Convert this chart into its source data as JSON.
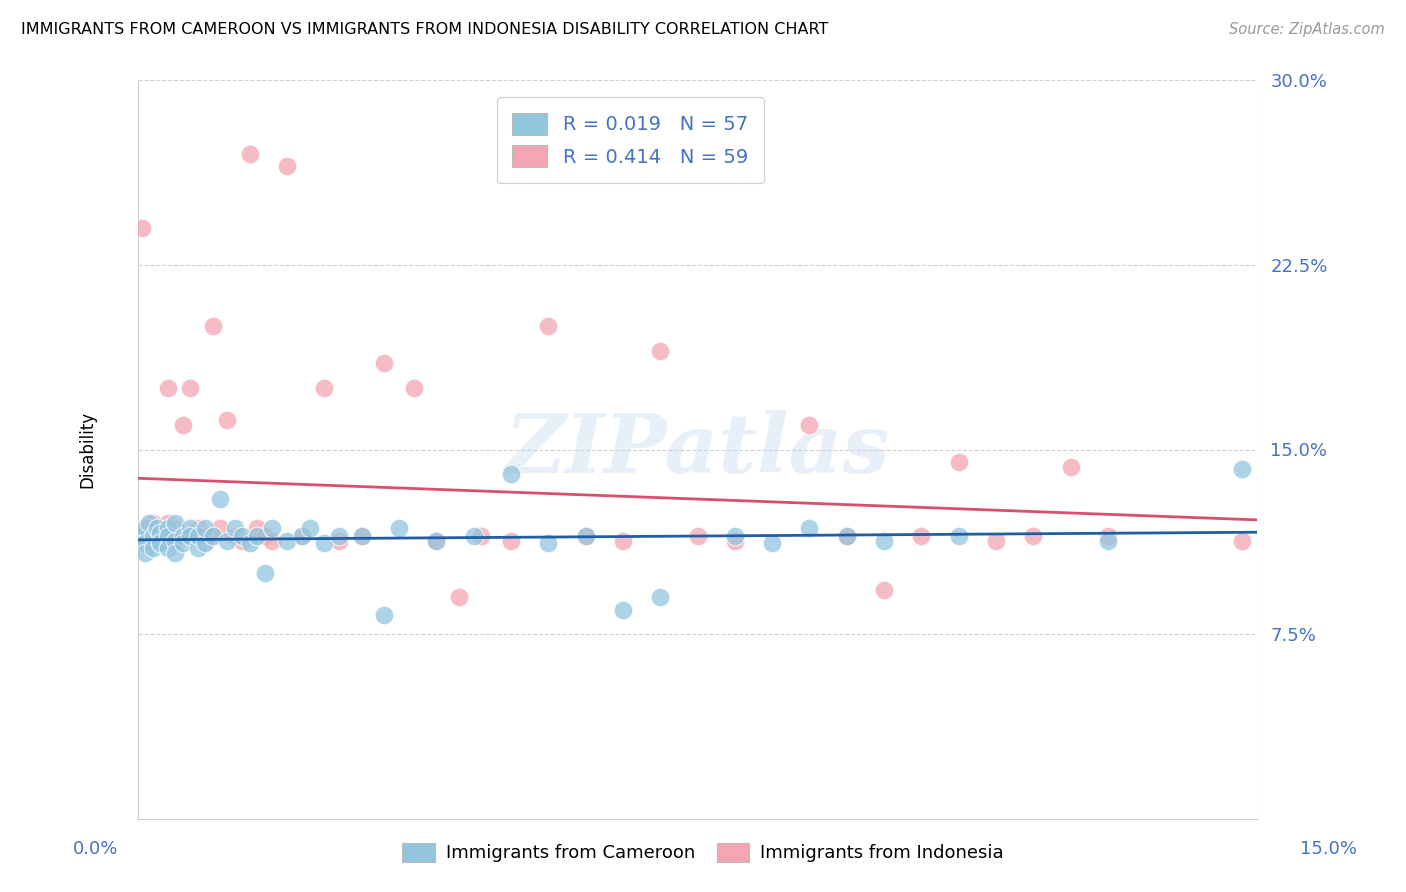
{
  "title": "IMMIGRANTS FROM CAMEROON VS IMMIGRANTS FROM INDONESIA DISABILITY CORRELATION CHART",
  "source": "Source: ZipAtlas.com",
  "ylabel": "Disability",
  "xlim": [
    0.0,
    0.15
  ],
  "ylim": [
    0.0,
    0.3
  ],
  "cameroon_R": 0.019,
  "cameroon_N": 57,
  "indonesia_R": 0.414,
  "indonesia_N": 59,
  "cameroon_color": "#92c5de",
  "indonesia_color": "#f4a6b2",
  "cameroon_line_color": "#1f5fa6",
  "indonesia_line_color": "#d94f6e",
  "watermark_text": "ZIPatlas",
  "ytick_vals": [
    0.075,
    0.15,
    0.225,
    0.3
  ],
  "ytick_labels": [
    "7.5%",
    "15.0%",
    "22.5%",
    "30.0%"
  ],
  "cameroon_x": [
    0.0005,
    0.001,
    0.001,
    0.001,
    0.0015,
    0.002,
    0.002,
    0.0025,
    0.003,
    0.003,
    0.003,
    0.004,
    0.004,
    0.004,
    0.005,
    0.005,
    0.005,
    0.006,
    0.006,
    0.007,
    0.007,
    0.008,
    0.008,
    0.009,
    0.009,
    0.01,
    0.011,
    0.012,
    0.013,
    0.014,
    0.015,
    0.016,
    0.017,
    0.018,
    0.02,
    0.022,
    0.023,
    0.025,
    0.027,
    0.03,
    0.033,
    0.035,
    0.04,
    0.045,
    0.05,
    0.055,
    0.06,
    0.065,
    0.07,
    0.08,
    0.085,
    0.09,
    0.095,
    0.1,
    0.11,
    0.13,
    0.148
  ],
  "cameroon_y": [
    0.115,
    0.118,
    0.112,
    0.108,
    0.12,
    0.115,
    0.11,
    0.118,
    0.113,
    0.116,
    0.112,
    0.118,
    0.115,
    0.11,
    0.113,
    0.12,
    0.108,
    0.115,
    0.112,
    0.118,
    0.115,
    0.11,
    0.115,
    0.112,
    0.118,
    0.115,
    0.13,
    0.113,
    0.118,
    0.115,
    0.112,
    0.115,
    0.1,
    0.118,
    0.113,
    0.115,
    0.118,
    0.112,
    0.115,
    0.115,
    0.083,
    0.118,
    0.113,
    0.115,
    0.14,
    0.112,
    0.115,
    0.085,
    0.09,
    0.115,
    0.112,
    0.118,
    0.115,
    0.113,
    0.115,
    0.113,
    0.142
  ],
  "indonesia_x": [
    0.0005,
    0.001,
    0.001,
    0.001,
    0.0015,
    0.002,
    0.002,
    0.003,
    0.003,
    0.004,
    0.004,
    0.004,
    0.005,
    0.005,
    0.006,
    0.006,
    0.007,
    0.007,
    0.008,
    0.008,
    0.009,
    0.009,
    0.01,
    0.01,
    0.011,
    0.012,
    0.013,
    0.014,
    0.015,
    0.016,
    0.017,
    0.018,
    0.02,
    0.022,
    0.025,
    0.027,
    0.03,
    0.033,
    0.037,
    0.04,
    0.043,
    0.046,
    0.05,
    0.055,
    0.06,
    0.065,
    0.07,
    0.075,
    0.08,
    0.09,
    0.095,
    0.1,
    0.105,
    0.11,
    0.115,
    0.12,
    0.125,
    0.13,
    0.148
  ],
  "indonesia_y": [
    0.24,
    0.115,
    0.113,
    0.118,
    0.115,
    0.12,
    0.118,
    0.115,
    0.113,
    0.175,
    0.12,
    0.115,
    0.118,
    0.112,
    0.16,
    0.115,
    0.175,
    0.115,
    0.118,
    0.115,
    0.115,
    0.113,
    0.2,
    0.115,
    0.118,
    0.162,
    0.115,
    0.113,
    0.27,
    0.118,
    0.115,
    0.113,
    0.265,
    0.115,
    0.175,
    0.113,
    0.115,
    0.185,
    0.175,
    0.113,
    0.09,
    0.115,
    0.113,
    0.2,
    0.115,
    0.113,
    0.19,
    0.115,
    0.113,
    0.16,
    0.115,
    0.093,
    0.115,
    0.145,
    0.113,
    0.115,
    0.143,
    0.115,
    0.113
  ]
}
